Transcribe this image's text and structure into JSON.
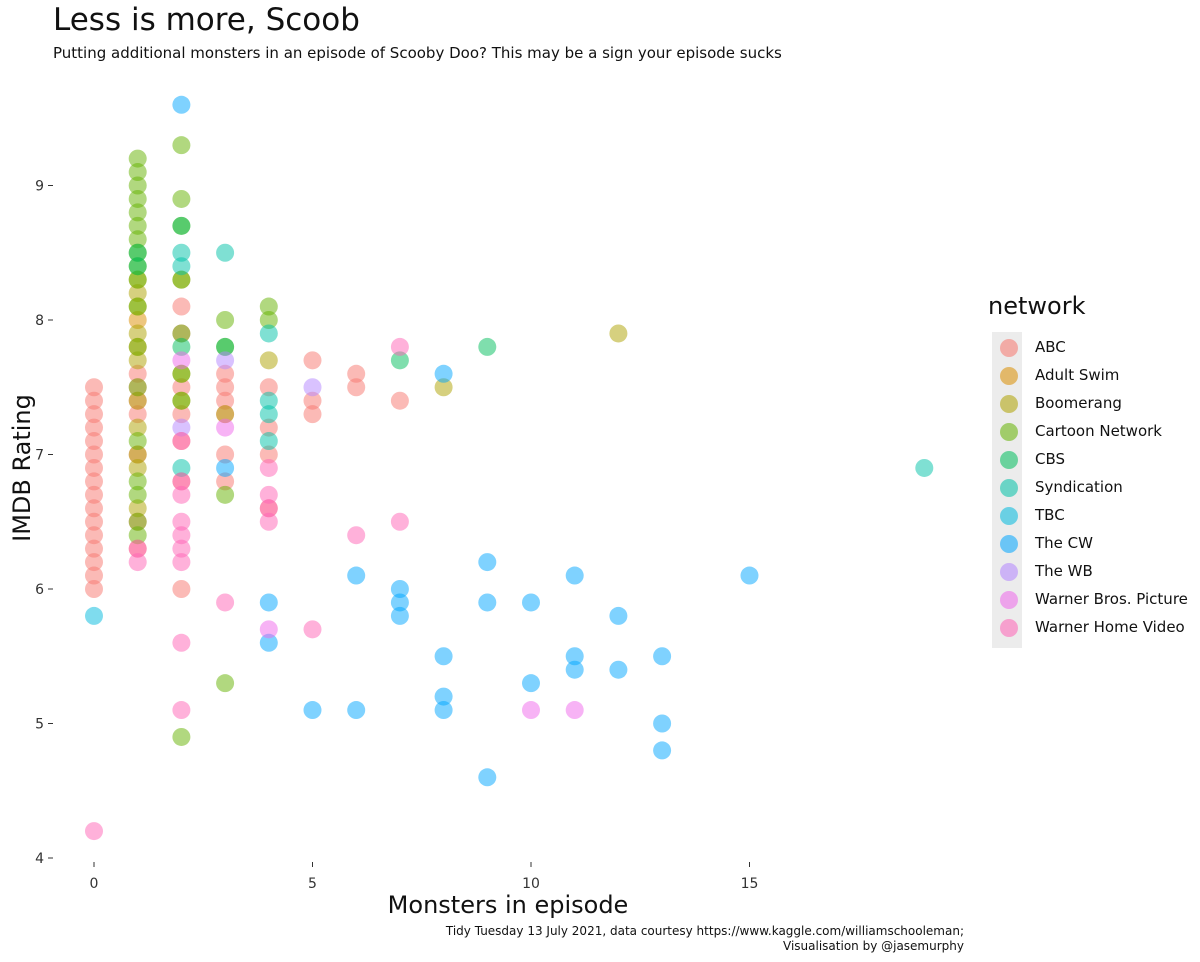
{
  "title": "Less is more, Scoob",
  "subtitle": "Putting additional monsters in an episode of Scooby Doo? This may be a sign your episode sucks",
  "caption_line1": "Tidy Tuesday 13 July 2021, data courtesy https://www.kaggle.com/williamschooleman;",
  "caption_line2": "Visualisation by @jasemurphy",
  "chart_data": {
    "type": "scatter",
    "xlabel": "Monsters in episode",
    "ylabel": "IMDB Rating",
    "xlim": [
      -0.3,
      19.5
    ],
    "ylim": [
      4,
      9.75
    ],
    "xticks": [
      0,
      5,
      10,
      15
    ],
    "yticks": [
      4,
      5,
      6,
      7,
      8,
      9
    ],
    "grid": false,
    "legend_title": "network",
    "legend_position": "right",
    "series": [
      {
        "name": "ABC",
        "color": "#F8766D",
        "points": [
          [
            0,
            7.5
          ],
          [
            0,
            7.4
          ],
          [
            0,
            7.3
          ],
          [
            0,
            7.2
          ],
          [
            0,
            7.1
          ],
          [
            0,
            7.0
          ],
          [
            0,
            6.9
          ],
          [
            0,
            6.8
          ],
          [
            0,
            6.7
          ],
          [
            0,
            6.6
          ],
          [
            0,
            6.5
          ],
          [
            0,
            6.4
          ],
          [
            0,
            6.3
          ],
          [
            0,
            6.2
          ],
          [
            0,
            6.1
          ],
          [
            0,
            6.0
          ],
          [
            1,
            6.3
          ],
          [
            1,
            6.5
          ],
          [
            1,
            7.0
          ],
          [
            1,
            7.3
          ],
          [
            1,
            7.4
          ],
          [
            1,
            7.5
          ],
          [
            1,
            7.6
          ],
          [
            2,
            8.1
          ],
          [
            2,
            7.9
          ],
          [
            2,
            7.5
          ],
          [
            2,
            7.3
          ],
          [
            2,
            7.1
          ],
          [
            2,
            6.8
          ],
          [
            2,
            6.0
          ],
          [
            3,
            7.6
          ],
          [
            3,
            7.5
          ],
          [
            3,
            7.4
          ],
          [
            3,
            7.3
          ],
          [
            3,
            7.0
          ],
          [
            3,
            6.8
          ],
          [
            4,
            7.5
          ],
          [
            4,
            7.2
          ],
          [
            4,
            7.0
          ],
          [
            4,
            6.6
          ],
          [
            5,
            7.7
          ],
          [
            5,
            7.4
          ],
          [
            5,
            7.3
          ],
          [
            6,
            7.6
          ],
          [
            6,
            7.5
          ],
          [
            7,
            7.4
          ]
        ]
      },
      {
        "name": "Adult Swim",
        "color": "#DB8E00",
        "points": [
          [
            1,
            8.0
          ],
          [
            1,
            7.8
          ]
        ]
      },
      {
        "name": "Boomerang",
        "color": "#AEA200",
        "points": [
          [
            1,
            8.3
          ],
          [
            1,
            8.2
          ],
          [
            1,
            8.1
          ],
          [
            1,
            7.9
          ],
          [
            1,
            7.7
          ],
          [
            1,
            7.4
          ],
          [
            1,
            7.2
          ],
          [
            1,
            7.0
          ],
          [
            1,
            6.9
          ],
          [
            1,
            6.6
          ],
          [
            2,
            8.3
          ],
          [
            2,
            7.6
          ],
          [
            2,
            7.4
          ],
          [
            3,
            7.3
          ],
          [
            4,
            7.7
          ],
          [
            8,
            7.5
          ],
          [
            12,
            7.9
          ]
        ]
      },
      {
        "name": "Cartoon Network",
        "color": "#64B200",
        "points": [
          [
            1,
            9.2
          ],
          [
            1,
            9.1
          ],
          [
            1,
            9.0
          ],
          [
            1,
            8.9
          ],
          [
            1,
            8.8
          ],
          [
            1,
            8.7
          ],
          [
            1,
            8.6
          ],
          [
            1,
            8.5
          ],
          [
            1,
            8.4
          ],
          [
            1,
            8.3
          ],
          [
            1,
            8.1
          ],
          [
            1,
            7.8
          ],
          [
            1,
            7.5
          ],
          [
            1,
            7.1
          ],
          [
            1,
            6.8
          ],
          [
            1,
            6.7
          ],
          [
            1,
            6.5
          ],
          [
            1,
            6.4
          ],
          [
            2,
            9.3
          ],
          [
            2,
            8.9
          ],
          [
            2,
            8.7
          ],
          [
            2,
            8.3
          ],
          [
            2,
            7.9
          ],
          [
            2,
            7.6
          ],
          [
            2,
            7.4
          ],
          [
            2,
            4.9
          ],
          [
            3,
            8.0
          ],
          [
            3,
            7.8
          ],
          [
            3,
            6.7
          ],
          [
            3,
            5.3
          ],
          [
            4,
            8.1
          ],
          [
            4,
            8.0
          ]
        ]
      },
      {
        "name": "CBS",
        "color": "#00BD5C",
        "points": [
          [
            1,
            8.5
          ],
          [
            1,
            8.4
          ],
          [
            2,
            8.7
          ],
          [
            2,
            7.8
          ],
          [
            3,
            7.8
          ],
          [
            7,
            7.7
          ],
          [
            9,
            7.8
          ]
        ]
      },
      {
        "name": "Syndication",
        "color": "#00C1A7",
        "points": [
          [
            2,
            8.5
          ],
          [
            2,
            8.4
          ],
          [
            2,
            6.9
          ],
          [
            3,
            8.5
          ],
          [
            4,
            7.9
          ],
          [
            4,
            7.4
          ],
          [
            4,
            7.3
          ],
          [
            4,
            7.1
          ],
          [
            19,
            6.9
          ]
        ]
      },
      {
        "name": "TBC",
        "color": "#00BADE",
        "points": [
          [
            0,
            5.8
          ]
        ]
      },
      {
        "name": "The CW",
        "color": "#00A6FF",
        "points": [
          [
            2,
            9.6
          ],
          [
            3,
            6.9
          ],
          [
            4,
            5.9
          ],
          [
            4,
            5.6
          ],
          [
            5,
            5.1
          ],
          [
            6,
            6.1
          ],
          [
            6,
            5.1
          ],
          [
            7,
            6.0
          ],
          [
            7,
            5.9
          ],
          [
            7,
            5.8
          ],
          [
            8,
            5.5
          ],
          [
            8,
            5.2
          ],
          [
            8,
            5.1
          ],
          [
            8,
            7.6
          ],
          [
            9,
            6.2
          ],
          [
            9,
            5.9
          ],
          [
            9,
            4.6
          ],
          [
            10,
            5.9
          ],
          [
            10,
            5.3
          ],
          [
            11,
            6.1
          ],
          [
            11,
            5.5
          ],
          [
            11,
            5.4
          ],
          [
            12,
            5.8
          ],
          [
            12,
            5.4
          ],
          [
            13,
            5.5
          ],
          [
            13,
            5.0
          ],
          [
            13,
            4.8
          ],
          [
            15,
            6.1
          ]
        ]
      },
      {
        "name": "The WB",
        "color": "#B385FF",
        "points": [
          [
            2,
            7.2
          ],
          [
            3,
            7.7
          ],
          [
            5,
            7.5
          ]
        ]
      },
      {
        "name": "Warner Bros. Picture",
        "color": "#EF67EB",
        "points": [
          [
            2,
            7.7
          ],
          [
            3,
            7.2
          ],
          [
            4,
            5.7
          ],
          [
            10,
            5.1
          ],
          [
            11,
            5.1
          ]
        ]
      },
      {
        "name": "Warner Home Video",
        "color": "#FF63B6",
        "points": [
          [
            0,
            4.2
          ],
          [
            1,
            6.2
          ],
          [
            1,
            6.3
          ],
          [
            2,
            7.1
          ],
          [
            2,
            6.8
          ],
          [
            2,
            6.7
          ],
          [
            2,
            6.5
          ],
          [
            2,
            6.4
          ],
          [
            2,
            6.3
          ],
          [
            2,
            6.2
          ],
          [
            2,
            5.6
          ],
          [
            2,
            5.1
          ],
          [
            3,
            5.9
          ],
          [
            4,
            6.9
          ],
          [
            4,
            6.7
          ],
          [
            4,
            6.6
          ],
          [
            4,
            6.5
          ],
          [
            5,
            5.7
          ],
          [
            6,
            6.4
          ],
          [
            7,
            7.8
          ],
          [
            7,
            6.5
          ]
        ]
      }
    ]
  }
}
